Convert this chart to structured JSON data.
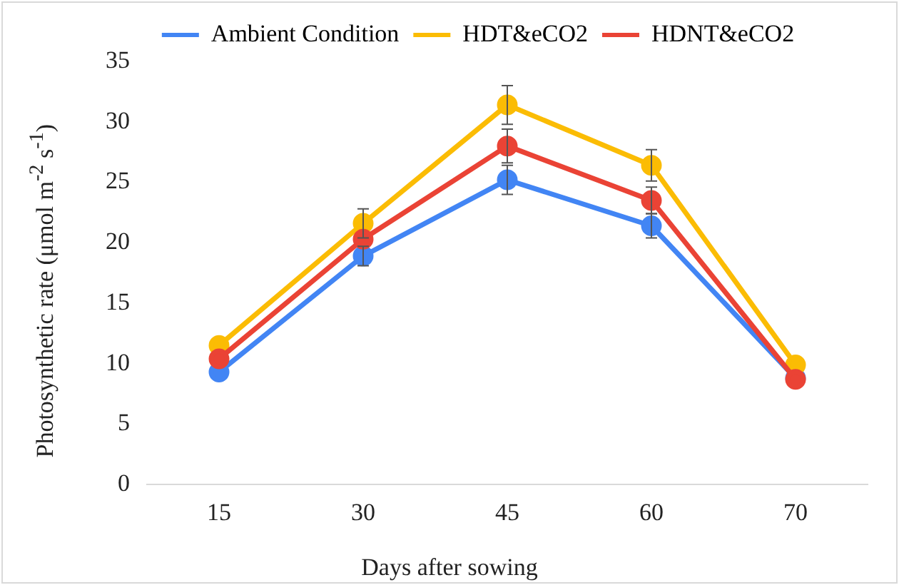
{
  "chart_data": {
    "type": "line",
    "xlabel": "Days after sowing",
    "ylabel": "Photosynthetic rate (μmol m$^{-2}$ s$^{-1}$)",
    "categories": [
      "15",
      "30",
      "45",
      "60",
      "70"
    ],
    "series": [
      {
        "name": "Ambient Condition",
        "color": "#4285f4",
        "values": [
          9.3,
          18.9,
          25.2,
          21.4,
          8.8
        ],
        "errors": [
          null,
          0.8,
          1.2,
          1.0,
          null
        ]
      },
      {
        "name": "HDT&eCO2",
        "color": "#fbbc04",
        "values": [
          11.5,
          21.6,
          31.4,
          26.4,
          9.9
        ],
        "errors": [
          null,
          1.2,
          1.6,
          1.3,
          null
        ]
      },
      {
        "name": "HDNT&eCO2",
        "color": "#ea4335",
        "values": [
          10.4,
          20.3,
          28.0,
          23.5,
          8.7
        ],
        "errors": [
          null,
          null,
          1.4,
          1.1,
          null
        ]
      }
    ],
    "ylim": [
      0,
      35
    ],
    "yticks": [
      0,
      5,
      10,
      15,
      20,
      25,
      30,
      35
    ],
    "grid": false,
    "legend": "top",
    "marker": "circle",
    "line_style": "solid"
  }
}
